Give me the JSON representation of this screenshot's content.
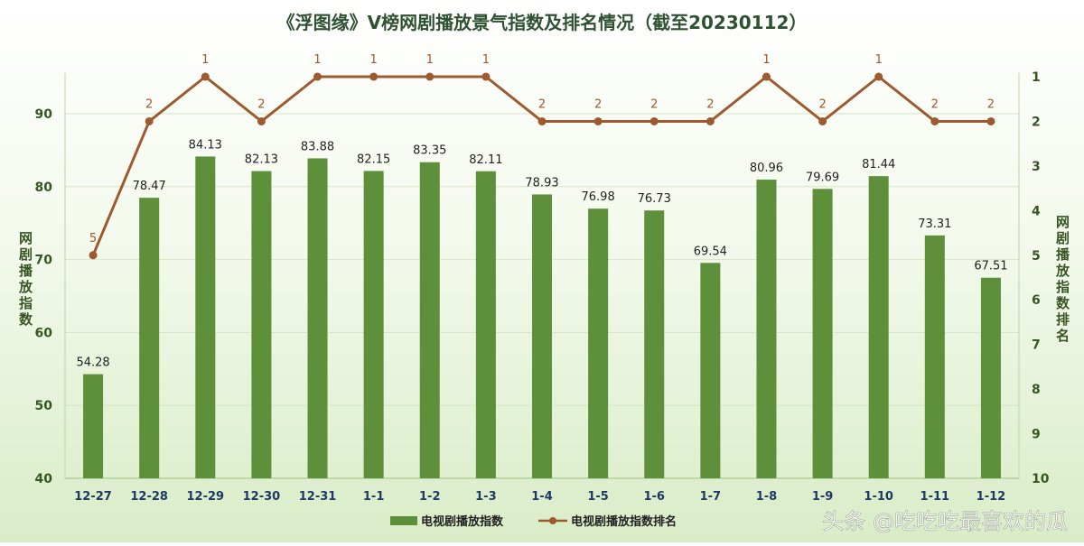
{
  "chart_data": {
    "type": "bar",
    "title": "《浮图缘》V榜网剧播放景气指数及排名情况（截至20230112）",
    "categories": [
      "12-27",
      "12-28",
      "12-29",
      "12-30",
      "12-31",
      "1-1",
      "1-2",
      "1-3",
      "1-4",
      "1-5",
      "1-6",
      "1-7",
      "1-8",
      "1-9",
      "1-10",
      "1-11",
      "1-12"
    ],
    "ylabel_left": "网剧播放指数",
    "ylabel_right": "网剧播放指数排名",
    "ylim_left": [
      40,
      95
    ],
    "yticks_left": [
      40,
      50,
      60,
      70,
      80,
      90
    ],
    "ylim_right": [
      10,
      1
    ],
    "yticks_right": [
      1,
      2,
      3,
      4,
      5,
      6,
      7,
      8,
      9,
      10
    ],
    "grid": true,
    "legend_position": "bottom",
    "series": [
      {
        "name": "电视剧播放指数",
        "type": "bar",
        "axis": "left",
        "color": "#5e8f3a",
        "values": [
          54.28,
          78.47,
          84.13,
          82.13,
          83.88,
          82.15,
          83.35,
          82.11,
          78.93,
          76.98,
          76.73,
          69.54,
          80.96,
          79.69,
          81.44,
          73.31,
          67.51
        ],
        "labels": [
          "54.28",
          "78.47",
          "84.13",
          "82.13",
          "83.88",
          "82.15",
          "83.35",
          "82.11",
          "78.93",
          "76.98",
          "76.73",
          "69.54",
          "80.96",
          "79.69",
          "81.44",
          "73.31",
          "67.51"
        ]
      },
      {
        "name": "电视剧播放指数排名",
        "type": "line",
        "axis": "right",
        "color": "#9c5a2e",
        "values": [
          5,
          2,
          1,
          2,
          1,
          1,
          1,
          1,
          2,
          2,
          2,
          2,
          1,
          2,
          1,
          2,
          2
        ]
      }
    ]
  },
  "watermark": "头条 @吃吃吃最喜欢的瓜"
}
